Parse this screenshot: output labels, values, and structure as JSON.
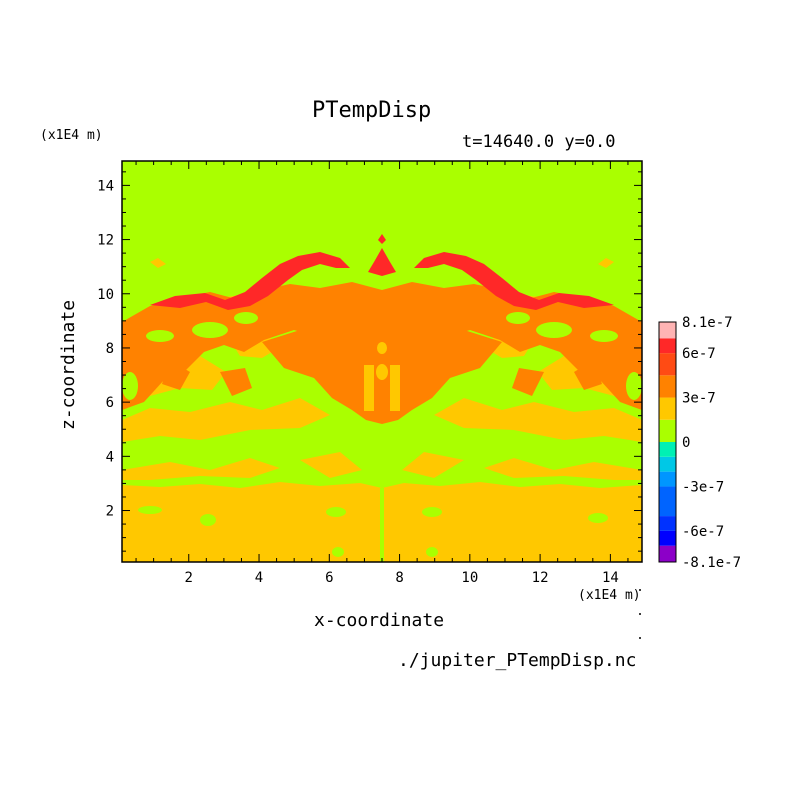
{
  "chart_data": {
    "type": "heatmap",
    "title": "PTempDisp",
    "subtitle": "t=14640.0 y=0.0",
    "xlabel": "x-coordinate",
    "ylabel": "z-coordinate",
    "x_unit": "(x1E4 m)",
    "y_unit": "(x1E4 m)",
    "xlim": [
      0.1,
      14.9
    ],
    "ylim": [
      0.1,
      14.9
    ],
    "x_ticks": [
      2,
      4,
      6,
      8,
      10,
      12,
      14
    ],
    "y_ticks": [
      2,
      4,
      6,
      8,
      10,
      12,
      14
    ],
    "grid": false,
    "colorbar": {
      "position": "right",
      "levels": [
        -8.1e-07,
        -7e-07,
        -6e-07,
        -5e-07,
        -3e-07,
        -2e-07,
        -1e-07,
        0,
        1.5e-07,
        3e-07,
        4.5e-07,
        6e-07,
        7e-07,
        8.1e-07
      ],
      "colors": [
        "#8c00c8",
        "#0000ff",
        "#0032ff",
        "#0064ff",
        "#0096ff",
        "#00c8e6",
        "#00f0b4",
        "#aaff00",
        "#ffc800",
        "#ff8200",
        "#ff4b14",
        "#ff2828",
        "#ffb4b4"
      ],
      "tick_labels": [
        {
          "value": 8.1e-07,
          "label": "8.1e-7"
        },
        {
          "value": 6e-07,
          "label": "6e-7"
        },
        {
          "value": 3e-07,
          "label": "3e-7"
        },
        {
          "value": 0,
          "label": "0"
        },
        {
          "value": -3e-07,
          "label": "-3e-7"
        },
        {
          "value": -6e-07,
          "label": "-6e-7"
        },
        {
          "value": -8.1e-07,
          "label": "-8.1e-7"
        }
      ]
    },
    "regions": [
      {
        "level": "3e-7 to 4.5e-7",
        "z_range": [
          0.1,
          3.0
        ],
        "note": "bottom band"
      },
      {
        "level": "0 to 1.5e-7",
        "z_range": [
          3.0,
          14.9
        ],
        "note": "background"
      },
      {
        "level": "3e-7 to 4.5e-7",
        "z_range": [
          5.0,
          9.0
        ],
        "note": "scattered patches"
      },
      {
        "level": "4.5e-7 to 6e-7",
        "z_range": [
          6.0,
          9.5
        ],
        "note": "central plume"
      },
      {
        "level": "6e-7 to 7e-7",
        "z_range": [
          9.5,
          12.2
        ],
        "note": "upper arcs"
      }
    ]
  },
  "file": {
    "name": "./jupiter_PTempDisp.nc"
  }
}
